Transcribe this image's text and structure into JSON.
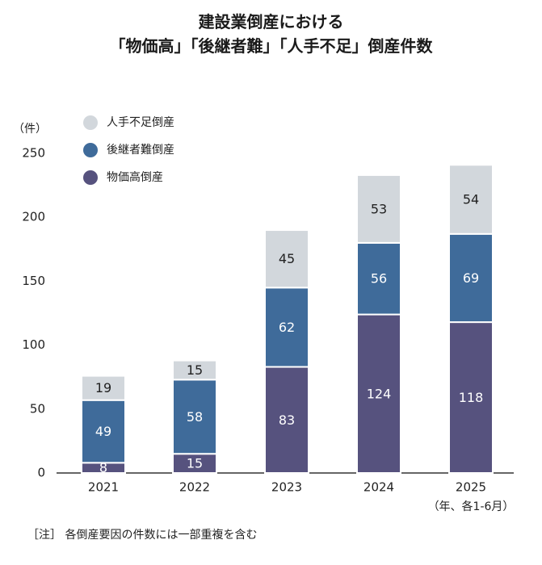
{
  "title_lines": [
    "建設業倒産における",
    "「物価高」「後継者難」「人手不足」倒産件数"
  ],
  "note": "［注］ 各倒産要因の件数には一部重複を含む",
  "chart_data": {
    "type": "bar",
    "stacked": true,
    "ylabel": "（件）",
    "ylim": [
      0,
      250
    ],
    "yticks": [
      0,
      50,
      100,
      150,
      200,
      250
    ],
    "grid": false,
    "legend_position": "top-left",
    "categories": [
      "2021",
      "2022",
      "2023",
      "2024",
      "2025"
    ],
    "x_note": "（年、各1-6月）",
    "series": [
      {
        "name": "物価高倒産",
        "color": "#56527e",
        "values": [
          8,
          15,
          83,
          124,
          118
        ]
      },
      {
        "name": "後継者難倒産",
        "color": "#3f6b9a",
        "values": [
          49,
          58,
          62,
          56,
          69
        ]
      },
      {
        "name": "人手不足倒産",
        "color": "#d2d7dc",
        "values": [
          19,
          15,
          45,
          53,
          54
        ]
      }
    ],
    "legend_order": [
      "人手不足倒産",
      "後継者難倒産",
      "物価高倒産"
    ],
    "label_colors": {
      "dark": "#ffffff",
      "light": "#222222"
    }
  }
}
